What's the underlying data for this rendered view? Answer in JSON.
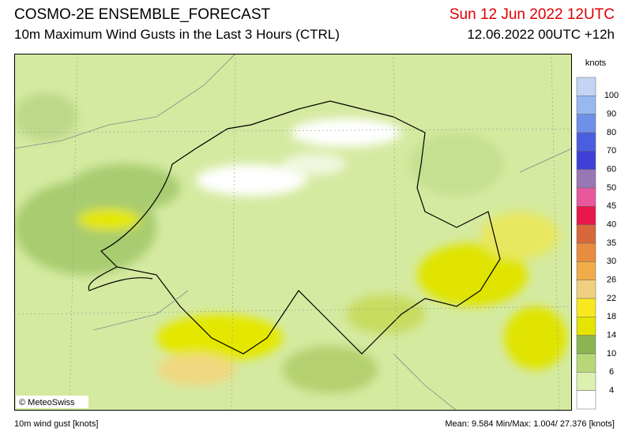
{
  "header": {
    "title": "COSMO-2E ENSEMBLE_FORECAST",
    "subtitle": "10m Maximum Wind Gusts in the Last 3 Hours (CTRL)",
    "valid_time": "Sun 12 Jun 2022 12UTC",
    "run_time": "12.06.2022 00UTC +12h"
  },
  "map": {
    "copyright": "© MeteoSwiss"
  },
  "legend": {
    "unit": "knots",
    "labels": [
      "100",
      "90",
      "80",
      "70",
      "60",
      "50",
      "45",
      "40",
      "35",
      "30",
      "26",
      "22",
      "18",
      "14",
      "10",
      "6",
      "4"
    ],
    "colors": [
      "#c4d4f4",
      "#98b8f0",
      "#6f90e8",
      "#4a5ee0",
      "#4040d8",
      "#9878b4",
      "#e8589c",
      "#e8184c",
      "#d8683c",
      "#e88c40",
      "#f0ac48",
      "#f0d080",
      "#f8e820",
      "#e4e400",
      "#8cb450",
      "#b8d878",
      "#dcf0b0",
      "#ffffff"
    ]
  },
  "footer": {
    "variable": "10m wind gust [knots]",
    "stats": "Mean:  9.584 Min/Max:  1.004/ 27.376 [knots]"
  }
}
